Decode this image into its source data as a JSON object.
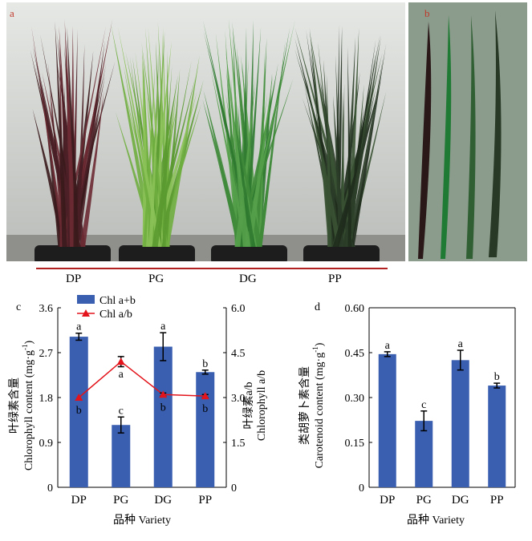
{
  "panels": {
    "a": {
      "label": "a",
      "varieties": [
        "DP",
        "PG",
        "DG",
        "PP"
      ]
    },
    "b": {
      "label": "b"
    },
    "c": {
      "label": "c"
    },
    "d": {
      "label": "d"
    }
  },
  "colors": {
    "bar": "#3a5fb0",
    "line": "#e3141b",
    "photo_bg_a": "#d4d6d3",
    "photo_bg_b": "#8a9a8a",
    "underline": "#b22222"
  },
  "chart_data": [
    {
      "type": "bar+line",
      "panel": "c",
      "categories": [
        "DP",
        "PG",
        "DG",
        "PP"
      ],
      "xlabel": "品种 Variety",
      "ylabel_left_cn": "叶绿素含量",
      "ylabel_left_en": "Chlorophyll content (mg·g",
      "ylabel_left_sup": "-1",
      "ylabel_left_end": ")",
      "ylabel_right_cn": "叶绿素a/b",
      "ylabel_right_en": "Chlorophyll a/b",
      "ylim_left": [
        0,
        3.6
      ],
      "yticks_left": [
        "0",
        "0.9",
        "1.8",
        "2.7",
        "3.6"
      ],
      "ylim_right": [
        0,
        6.0
      ],
      "yticks_right": [
        "0",
        "1.5",
        "3.0",
        "4.5",
        "6.0"
      ],
      "legend": {
        "position": "top-left",
        "bar_name": "Chl a+b",
        "line_name": "Chl a/b"
      },
      "bars": {
        "name": "Chl a+b",
        "values": [
          3.02,
          1.25,
          2.82,
          2.31
        ],
        "errors": [
          0.07,
          0.16,
          0.28,
          0.04
        ],
        "letters": [
          "a",
          "c",
          "a",
          "b"
        ]
      },
      "line": {
        "name": "Chl a/b",
        "values": [
          3.0,
          4.2,
          3.1,
          3.05
        ],
        "errors": [
          0.0,
          0.17,
          0.05,
          0.05
        ],
        "letters": [
          "b",
          "a",
          "b",
          "b"
        ]
      }
    },
    {
      "type": "bar",
      "panel": "d",
      "categories": [
        "DP",
        "PG",
        "DG",
        "PP"
      ],
      "xlabel": "品种 Variety",
      "ylabel_cn": "类胡萝卜素含量",
      "ylabel_en": "Carotenoid content (mg·g",
      "ylabel_sup": "-1",
      "ylabel_end": ")",
      "ylim": [
        0,
        0.6
      ],
      "yticks": [
        "0",
        "0.15",
        "0.30",
        "0.45",
        "0.60"
      ],
      "values": [
        0.445,
        0.222,
        0.425,
        0.34
      ],
      "errors": [
        0.008,
        0.033,
        0.033,
        0.008
      ],
      "letters": [
        "a",
        "c",
        "a",
        "b"
      ]
    }
  ]
}
